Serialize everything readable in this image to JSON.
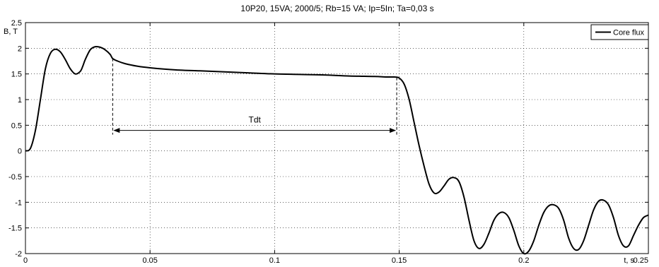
{
  "chart_data": {
    "type": "line",
    "title": "10P20, 15VA; 2000/5;    Rb=15 VA; Ip=5In; Ta=0,03 s",
    "xlabel": "t, s",
    "ylabel": "B, T",
    "xlim": [
      0,
      0.25
    ],
    "ylim": [
      -2,
      2.5
    ],
    "x_ticks": [
      0,
      0.05,
      0.1,
      0.15,
      0.2,
      0.25
    ],
    "x_tick_labels": [
      "0",
      "0.05",
      "0.1",
      "0.15",
      "0.2",
      "0.25"
    ],
    "y_ticks": [
      -2,
      -1.5,
      -1,
      -0.5,
      0,
      0.5,
      1,
      1.5,
      2,
      2.5
    ],
    "y_tick_labels": [
      "-2",
      "-1.5",
      "-1",
      "-0.5",
      "0",
      "0.5",
      "1",
      "1.5",
      "2",
      "2.5"
    ],
    "grid": true,
    "legend_position": "top-right",
    "series": [
      {
        "name": "Core flux",
        "color": "#000000",
        "x": [
          0,
          0.002,
          0.004,
          0.006,
          0.008,
          0.01,
          0.012,
          0.014,
          0.016,
          0.018,
          0.02,
          0.022,
          0.023,
          0.024,
          0.026,
          0.028,
          0.03,
          0.032,
          0.034,
          0.035,
          0.037,
          0.04,
          0.045,
          0.05,
          0.06,
          0.07,
          0.08,
          0.09,
          0.1,
          0.11,
          0.12,
          0.13,
          0.14,
          0.145,
          0.148,
          0.15,
          0.152,
          0.154,
          0.156,
          0.158,
          0.16,
          0.162,
          0.164,
          0.166,
          0.168,
          0.17,
          0.172,
          0.174,
          0.176,
          0.178,
          0.18,
          0.182,
          0.184,
          0.186,
          0.188,
          0.19,
          0.192,
          0.194,
          0.196,
          0.198,
          0.2,
          0.202,
          0.204,
          0.206,
          0.208,
          0.21,
          0.212,
          0.214,
          0.216,
          0.218,
          0.22,
          0.222,
          0.224,
          0.226,
          0.228,
          0.23,
          0.232,
          0.234,
          0.236,
          0.238,
          0.24,
          0.242,
          0.244,
          0.246,
          0.248,
          0.25
        ],
        "y": [
          0.0,
          0.05,
          0.4,
          1.0,
          1.6,
          1.9,
          1.98,
          1.93,
          1.78,
          1.6,
          1.5,
          1.55,
          1.65,
          1.78,
          1.97,
          2.03,
          2.02,
          1.97,
          1.88,
          1.8,
          1.75,
          1.7,
          1.65,
          1.62,
          1.58,
          1.56,
          1.54,
          1.52,
          1.5,
          1.49,
          1.48,
          1.46,
          1.45,
          1.44,
          1.44,
          1.42,
          1.3,
          1.0,
          0.55,
          0.1,
          -0.3,
          -0.65,
          -0.82,
          -0.8,
          -0.68,
          -0.55,
          -0.52,
          -0.6,
          -0.9,
          -1.35,
          -1.75,
          -1.9,
          -1.82,
          -1.6,
          -1.35,
          -1.22,
          -1.2,
          -1.3,
          -1.55,
          -1.85,
          -2.0,
          -1.95,
          -1.75,
          -1.45,
          -1.2,
          -1.07,
          -1.05,
          -1.12,
          -1.35,
          -1.7,
          -1.9,
          -1.92,
          -1.75,
          -1.45,
          -1.15,
          -0.98,
          -0.96,
          -1.05,
          -1.3,
          -1.65,
          -1.85,
          -1.85,
          -1.65,
          -1.45,
          -1.3,
          -1.25
        ]
      }
    ],
    "annotations": [
      {
        "text": "Tdt",
        "x_start": 0.035,
        "x_end": 0.149,
        "y": 0.4
      }
    ]
  }
}
